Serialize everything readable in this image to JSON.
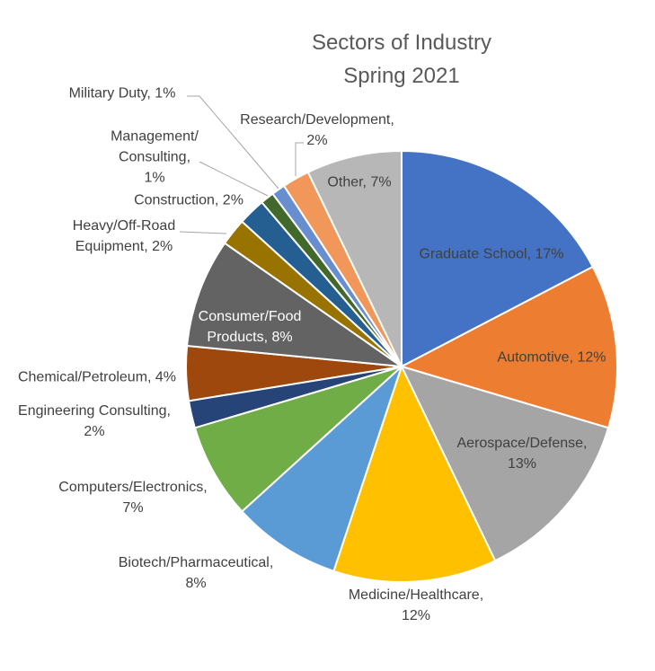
{
  "chart_data": {
    "type": "pie",
    "title": [
      "Sectors of Industry",
      "Spring 2021"
    ],
    "start": "top, clockwise",
    "slices": [
      {
        "label": "Graduate School",
        "value": 17,
        "pct_text": "17%",
        "color": "#4472C4"
      },
      {
        "label": "Automotive",
        "value": 12,
        "pct_text": "12%",
        "color": "#ED7D31"
      },
      {
        "label": "Aerospace/Defense",
        "value": 13,
        "pct_text": "13%",
        "color": "#A5A5A5"
      },
      {
        "label": "Medicine/Healthcare",
        "value": 12,
        "pct_text": "12%",
        "color": "#FFC000"
      },
      {
        "label": "Biotech/Pharmaceutical",
        "value": 8,
        "pct_text": "8%",
        "color": "#5B9BD5"
      },
      {
        "label": "Computers/Electronics",
        "value": 7,
        "pct_text": "7%",
        "color": "#70AD47"
      },
      {
        "label": "Engineering Consulting",
        "value": 2,
        "pct_text": "2%",
        "color": "#264478"
      },
      {
        "label": "Chemical/Petroleum",
        "value": 4,
        "pct_text": "4%",
        "color": "#9E480E"
      },
      {
        "label": "Consumer/Food Products",
        "value": 8,
        "pct_text": "8%",
        "color": "#636363"
      },
      {
        "label": "Heavy/Off-Road Equipment",
        "value": 2,
        "pct_text": "2%",
        "color": "#997300"
      },
      {
        "label": "Construction",
        "value": 2,
        "pct_text": "2%",
        "color": "#255E91"
      },
      {
        "label": "Management/Consulting",
        "value": 1,
        "pct_text": "1%",
        "color": "#43682B"
      },
      {
        "label": "Military Duty",
        "value": 1,
        "pct_text": "1%",
        "color": "#698ED0"
      },
      {
        "label": "Research/Development",
        "value": 2,
        "pct_text": "2%",
        "color": "#F1975A"
      },
      {
        "label": "Other",
        "value": 7,
        "pct_text": "7%",
        "color": "#B7B7B7"
      }
    ],
    "data_labels": {
      "graduate": "Graduate School, 17%",
      "automotive": "Automotive, 12%",
      "aerospace_1": "Aerospace/Defense,",
      "aerospace_2": "13%",
      "medicine_1": "Medicine/Healthcare,",
      "medicine_2": "12%",
      "biotech_1": "Biotech/Pharmaceutical,",
      "biotech_2": "8%",
      "computers_1": "Computers/Electronics,",
      "computers_2": "7%",
      "engineering_1": "Engineering Consulting,",
      "engineering_2": "2%",
      "chemical": "Chemical/Petroleum, 4%",
      "consumer_1": "Consumer/Food",
      "consumer_2": "Products, 8%",
      "heavy_1": "Heavy/Off-Road",
      "heavy_2": "Equipment, 2%",
      "construction": "Construction, 2%",
      "management_1": "Management/",
      "management_2": "Consulting,",
      "management_3": "1%",
      "military": "Military Duty, 1%",
      "research_1": "Research/Development,",
      "research_2": "2%",
      "other": "Other, 7%"
    }
  }
}
